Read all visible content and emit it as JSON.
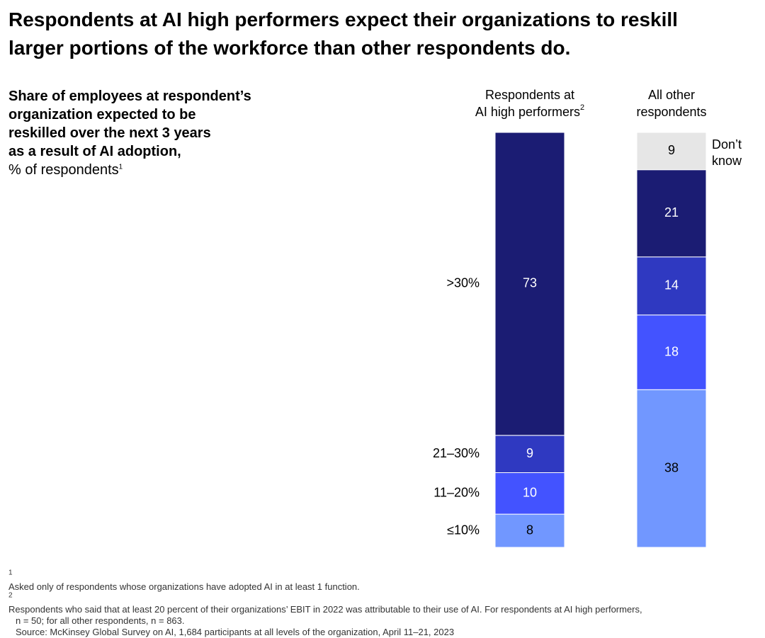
{
  "title_lines": [
    "Respondents at AI high performers expect their organizations to reskill",
    "larger portions of the workforce than other respondents do."
  ],
  "subtitle": {
    "bold_lines": [
      "Share of employees at respondent’s",
      "organization expected to be",
      "reskilled over the next 3 years",
      "as a result of AI adoption,"
    ],
    "normal": "% of respondents",
    "normal_sup": "1"
  },
  "chart_data": {
    "type": "bar",
    "stacked": true,
    "orientation": "vertical",
    "title": "",
    "categories": [
      "Respondents at AI high performers",
      "All other respondents"
    ],
    "category_label_lines": [
      {
        "lines": [
          "Respondents at",
          "AI high performers"
        ],
        "sup": "2"
      },
      {
        "lines": [
          "All other",
          "respondents"
        ],
        "sup": ""
      }
    ],
    "series": [
      {
        "name": "≤10%",
        "values": [
          8,
          38
        ],
        "color": "#7197FF"
      },
      {
        "name": "11–20%",
        "values": [
          10,
          18
        ],
        "color": "#4353FF"
      },
      {
        "name": "21–30%",
        "values": [
          9,
          14
        ],
        "color": "#2F39C1"
      },
      {
        "name": ">30%",
        "values": [
          73,
          21
        ],
        "color": "#1B1C73"
      },
      {
        "name": "Don’t know",
        "values": [
          0,
          9
        ],
        "color": "#E6E6E6"
      }
    ],
    "legend": {
      "placement": "left of first bar, aligned to segments",
      "dont_know_lines": [
        "Don’t",
        "know"
      ]
    },
    "ylim": [
      0,
      100
    ]
  },
  "footnotes": [
    {
      "sup": "1",
      "text": "Asked only of respondents whose organizations have adopted AI in at least 1 function."
    },
    {
      "sup": "2",
      "text": "Respondents who said that at least 20 percent of their organizations’ EBIT in 2022 was attributable to their use of AI. For respondents at AI high performers,"
    },
    {
      "sup": "",
      "text": "n = 50; for all other respondents, n = 863.",
      "indent": true
    }
  ],
  "source": "Source: McKinsey Global Survey on AI, 1,684 participants at all levels of the organization, April 11–21, 2023"
}
